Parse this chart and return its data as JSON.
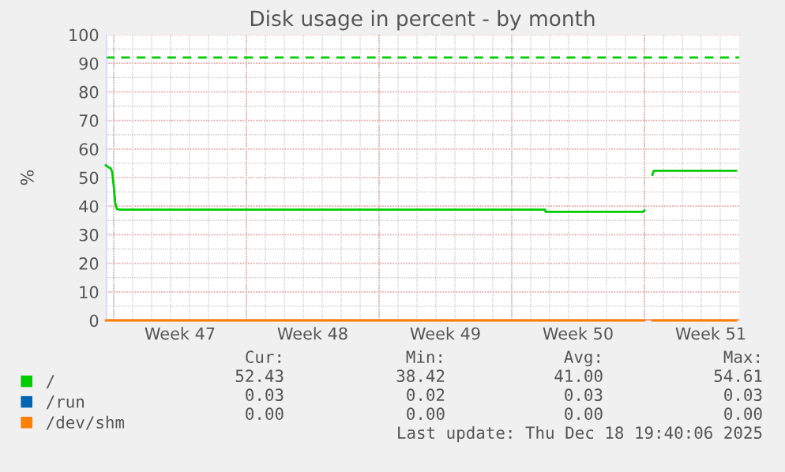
{
  "chart_data": {
    "type": "line",
    "title": "Disk usage in percent - by month",
    "ylabel": "%",
    "x": [
      "2025-11-16T14:00",
      "2025-11-16T18:00",
      "2025-11-16T20:00",
      "2025-11-16T22:00",
      "2025-11-17T00:00",
      "2025-11-17T02:00",
      "2025-11-17T04:00",
      "2025-11-17T08:00",
      "2025-12-09T18:00",
      "2025-12-09T19:00",
      "2025-12-14T22:00",
      "2025-12-15T00:00",
      "2025-12-15T02:00",
      "2025-12-15T10:00",
      "2025-12-15T12:00",
      "2025-12-19T20:00"
    ],
    "series": [
      {
        "name": "/",
        "color": "#00cc00",
        "values": [
          54.3,
          53.5,
          53.3,
          52,
          47,
          41,
          39,
          38.8,
          38.8,
          38.0,
          38.0,
          38.5,
          null,
          51,
          52.4,
          52.4
        ]
      },
      {
        "name": "/run",
        "color": "#0066b3",
        "values": [
          null,
          null,
          null,
          null,
          null,
          null,
          null,
          null,
          null,
          null,
          null,
          null,
          null,
          null,
          null,
          null
        ]
      },
      {
        "name": "/dev/shm",
        "color": "#ff8000",
        "values": [
          0,
          0,
          0,
          0,
          0,
          0,
          0,
          0,
          0,
          0,
          0,
          0,
          null,
          0,
          0,
          0
        ]
      }
    ],
    "xlim": [
      "2025-11-16T14:00",
      "2025-12-20T00:00"
    ],
    "xticks": [
      {
        "value": "2025-11-17",
        "label": null
      },
      {
        "value": "2025-11-20T12:00",
        "label": "Week 47"
      },
      {
        "value": "2025-11-24",
        "label": null
      },
      {
        "value": "2025-11-27T12:00",
        "label": "Week 48"
      },
      {
        "value": "2025-12-01",
        "label": null
      },
      {
        "value": "2025-12-04T12:00",
        "label": "Week 49"
      },
      {
        "value": "2025-12-08",
        "label": null
      },
      {
        "value": "2025-12-11T12:00",
        "label": "Week 50"
      },
      {
        "value": "2025-12-15",
        "label": null
      },
      {
        "value": "2025-12-18T12:00",
        "label": "Week 51"
      }
    ],
    "ylim": [
      0,
      100
    ],
    "yticks": [
      0,
      10,
      20,
      30,
      40,
      50,
      60,
      70,
      80,
      90,
      100
    ],
    "ref_lines": [
      {
        "axis": "y",
        "value": 92,
        "color": "#00cc00",
        "line_style": "dashed"
      }
    ],
    "grid": true,
    "legend": "bottom left",
    "line_style": "solid",
    "marker": "none",
    "annotations": [
      "Cur:",
      "Min:",
      "Avg:",
      "Max:",
      "52.43",
      "38.42",
      "41.00",
      "54.61",
      "0.03",
      "0.02",
      "0.03",
      "0.03",
      "0.00",
      "0.00",
      "0.00",
      "0.00",
      "Last update: Thu Dec 18 19:40:06 2025"
    ]
  }
}
